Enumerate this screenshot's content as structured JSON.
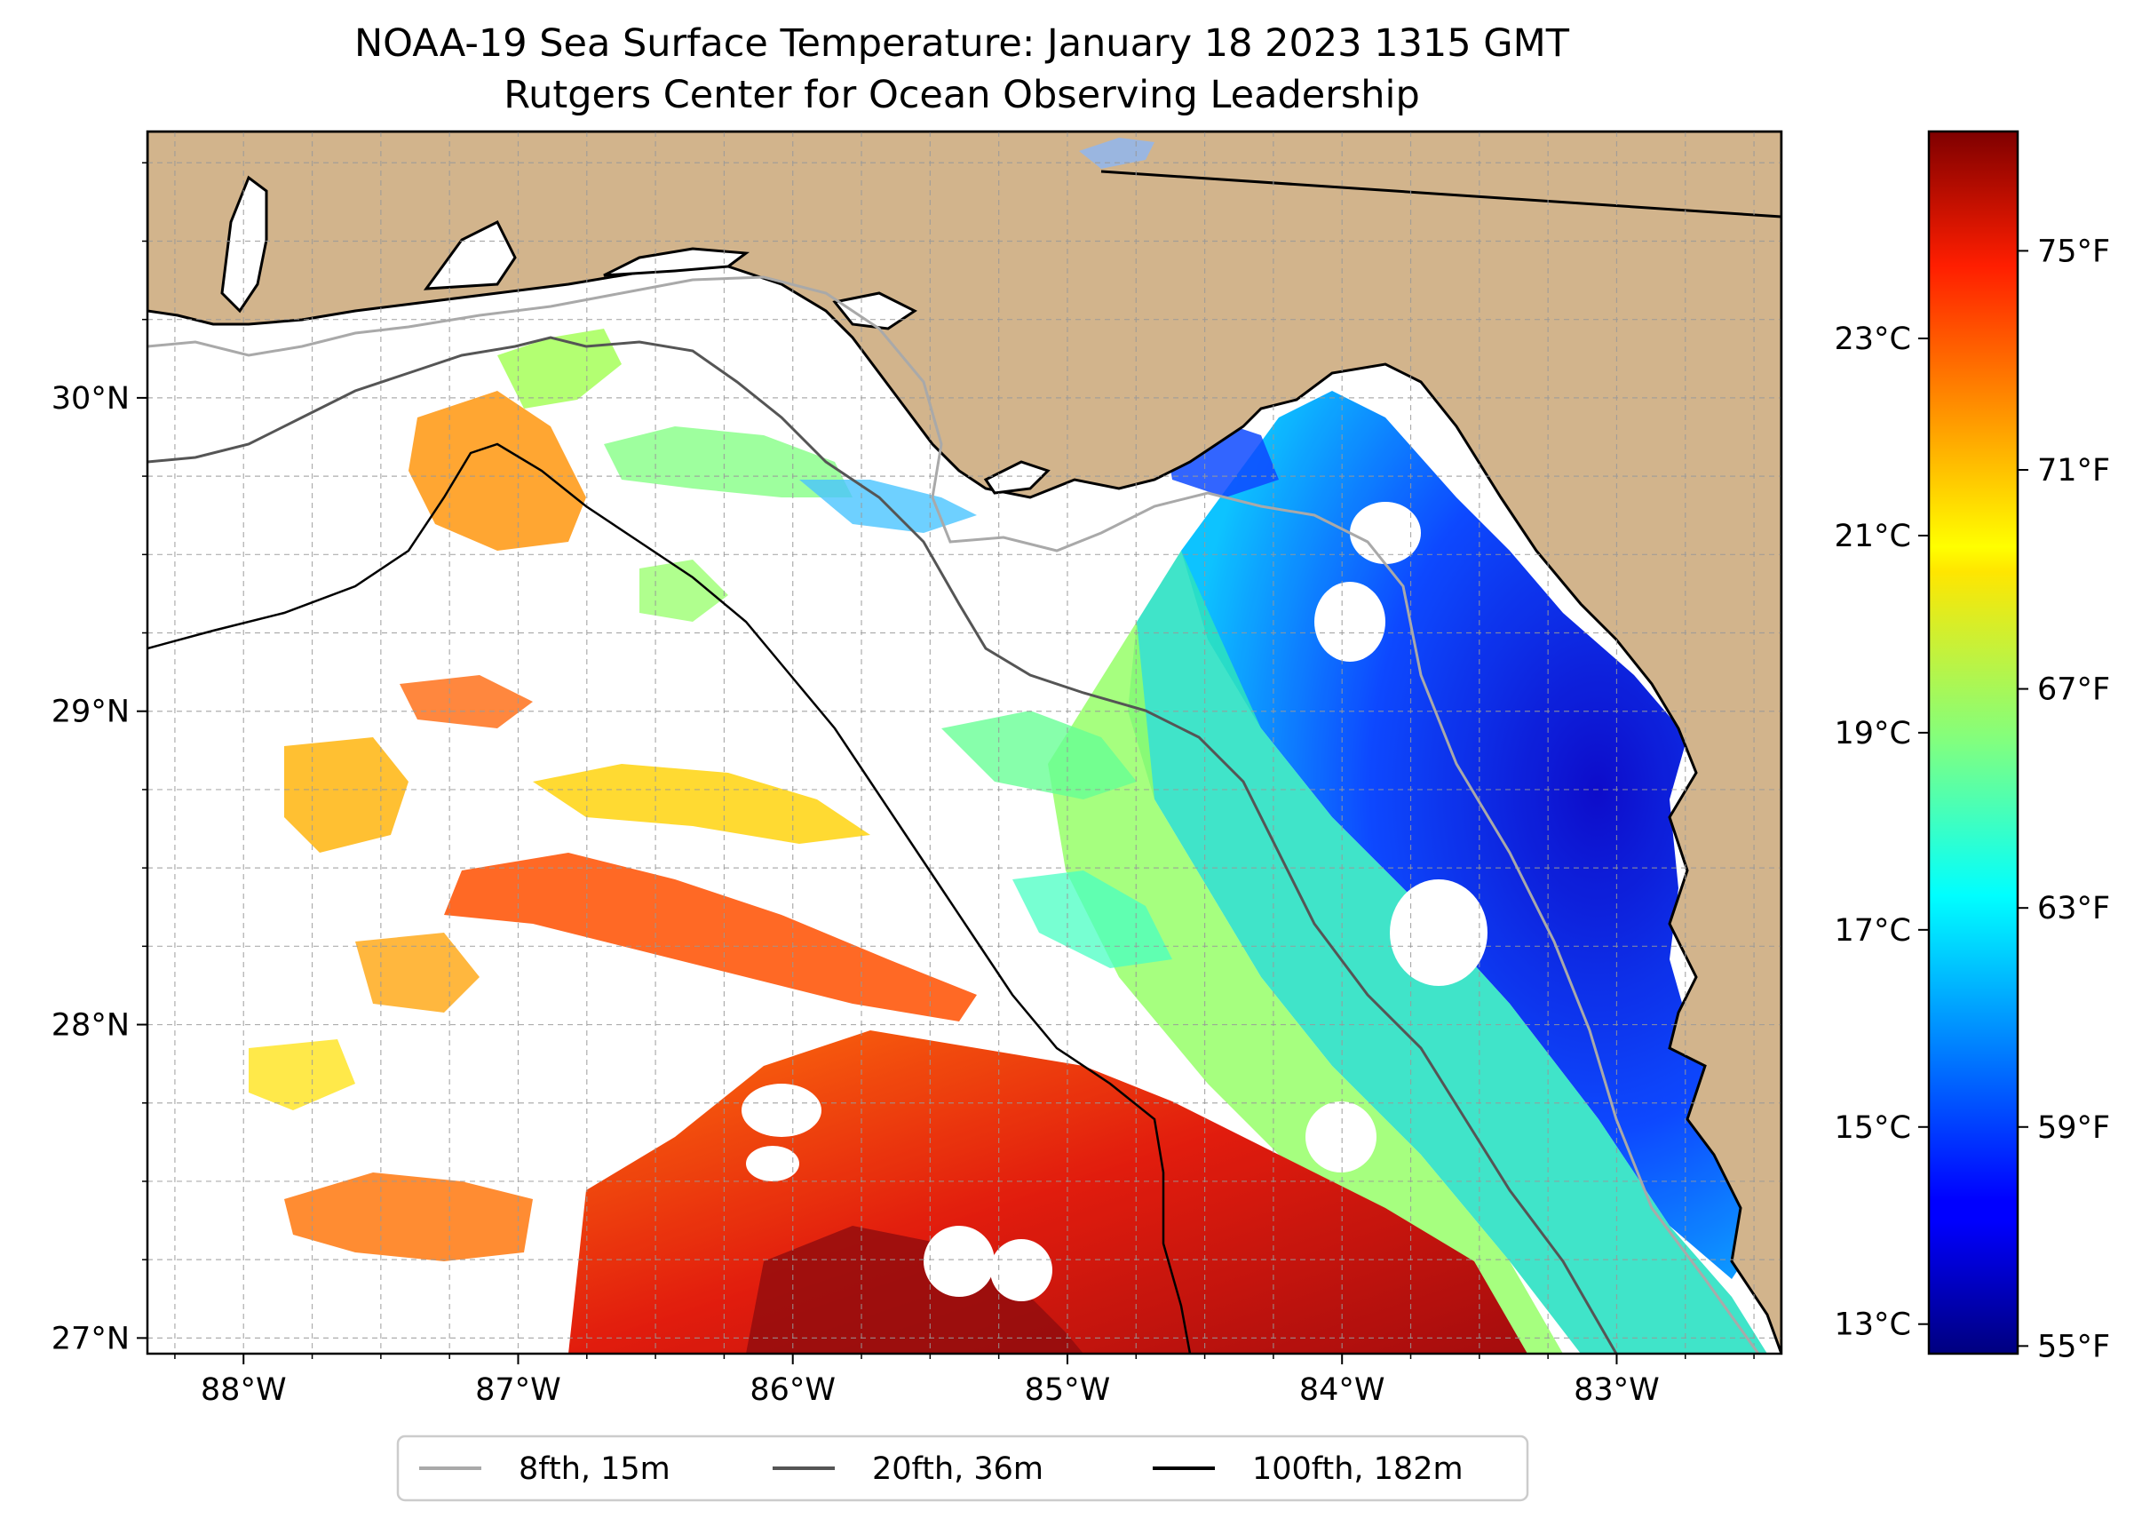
{
  "title": {
    "line1": "NOAA-19 Sea Surface Temperature: January 18 2023 1315 GMT",
    "line2": "Rutgers Center for Ocean Observing Leadership"
  },
  "map": {
    "lon_range": [
      -88.35,
      -82.4
    ],
    "lat_range": [
      26.95,
      30.85
    ],
    "land_color": "#d2b48c",
    "ocean_color": "#ffffff",
    "lon_ticks": [
      {
        "value": -88,
        "label": "88°W"
      },
      {
        "value": -87,
        "label": "87°W"
      },
      {
        "value": -86,
        "label": "86°W"
      },
      {
        "value": -85,
        "label": "85°W"
      },
      {
        "value": -84,
        "label": "84°W"
      },
      {
        "value": -83,
        "label": "83°W"
      }
    ],
    "lat_ticks": [
      {
        "value": 27,
        "label": "27°N"
      },
      {
        "value": 28,
        "label": "28°N"
      },
      {
        "value": 29,
        "label": "29°N"
      },
      {
        "value": 30,
        "label": "30°N"
      }
    ],
    "grid": true
  },
  "colorbar": {
    "colormap": "jet",
    "celsius_range": [
      12.7,
      25.1
    ],
    "fahrenheit_ticks": [
      {
        "value": 55,
        "label": "55°F"
      },
      {
        "value": 59,
        "label": "59°F"
      },
      {
        "value": 63,
        "label": "63°F"
      },
      {
        "value": 67,
        "label": "67°F"
      },
      {
        "value": 71,
        "label": "71°F"
      },
      {
        "value": 75,
        "label": "75°F"
      }
    ],
    "celsius_ticks": [
      {
        "value": 13,
        "label": "13°C"
      },
      {
        "value": 15,
        "label": "15°C"
      },
      {
        "value": 17,
        "label": "17°C"
      },
      {
        "value": 19,
        "label": "19°C"
      },
      {
        "value": 21,
        "label": "21°C"
      },
      {
        "value": 23,
        "label": "23°C"
      }
    ]
  },
  "legend": {
    "placement": "bottom-center",
    "items": [
      {
        "label": "8fth, 15m",
        "color": "#a9a9a9"
      },
      {
        "label": "20fth, 36m",
        "color": "#555555"
      },
      {
        "label": "100fth, 182m",
        "color": "#000000"
      }
    ]
  }
}
